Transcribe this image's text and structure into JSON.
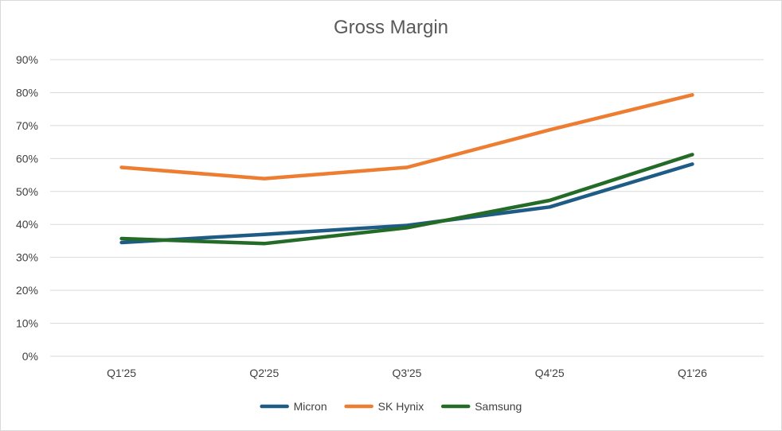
{
  "chart_data": {
    "type": "line",
    "title": "Gross Margin",
    "xlabel": "",
    "ylabel": "",
    "categories": [
      "Q1'25",
      "Q2'25",
      "Q3'25",
      "Q4'25",
      "Q1'26"
    ],
    "y_ticks": [
      "0%",
      "10%",
      "20%",
      "30%",
      "40%",
      "50%",
      "60%",
      "70%",
      "80%",
      "90%"
    ],
    "ylim": [
      0,
      90
    ],
    "grid": true,
    "legend_position": "bottom",
    "series": [
      {
        "name": "Micron",
        "color": "#1f5c85",
        "values": [
          34.5,
          37.0,
          39.7,
          45.3,
          58.3
        ]
      },
      {
        "name": "SK Hynix",
        "color": "#ed7d31",
        "values": [
          57.3,
          53.9,
          57.3,
          68.7,
          79.3
        ]
      },
      {
        "name": "Samsung",
        "color": "#236b27",
        "values": [
          35.7,
          34.2,
          39.0,
          47.3,
          61.2
        ]
      }
    ]
  }
}
